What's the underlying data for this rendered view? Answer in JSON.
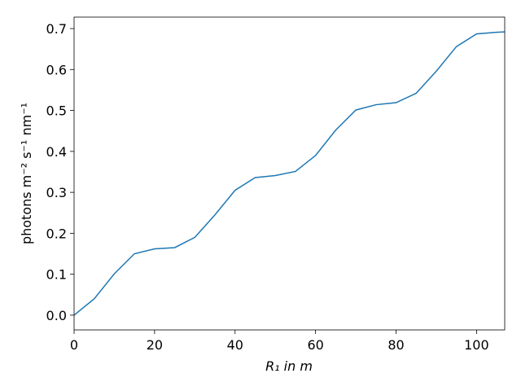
{
  "chart_data": {
    "type": "line",
    "x_label": "R₁ in m",
    "y_label": "photons m⁻² s⁻¹ nm⁻¹",
    "x": [
      0,
      5,
      10,
      15,
      20,
      25,
      30,
      35,
      40,
      45,
      50,
      55,
      60,
      65,
      70,
      75,
      80,
      85,
      90,
      95,
      100,
      105,
      107
    ],
    "series": [
      {
        "color": "#1f77b4",
        "values": [
          0.0,
          0.04,
          0.101,
          0.15,
          0.162,
          0.165,
          0.19,
          0.245,
          0.305,
          0.336,
          0.341,
          0.351,
          0.39,
          0.452,
          0.501,
          0.514,
          0.519,
          0.542,
          0.596,
          0.656,
          0.687,
          0.691,
          0.692
        ]
      }
    ],
    "xlim": [
      0,
      107
    ],
    "ylim": [
      -0.036,
      0.728
    ],
    "xticks": [
      0,
      20,
      40,
      60,
      80,
      100
    ],
    "yticks": [
      {
        "value": 0,
        "label": "0.0"
      },
      0.1,
      0.2,
      0.3,
      0.4,
      0.5,
      0.6,
      0.7
    ]
  }
}
